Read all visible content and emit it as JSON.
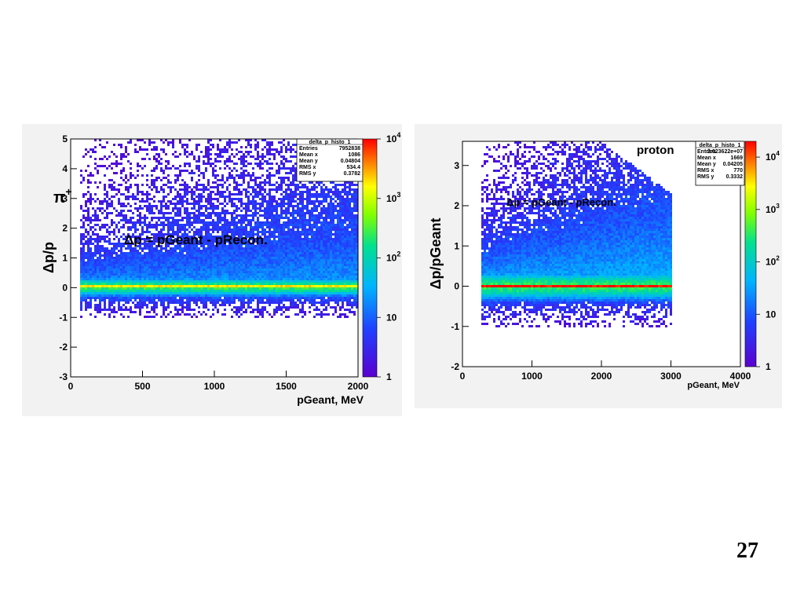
{
  "slide_number": "27",
  "chart_data": [
    {
      "type": "heatmap",
      "particle_label": "π",
      "particle_sup": "+",
      "annotation": "Δp = pGeant - pRecon.",
      "xlabel": "pGeant,  MeV",
      "ylabel": "Δp/p",
      "xlim": [
        0,
        2000
      ],
      "ylim": [
        -3,
        5
      ],
      "xticks": [
        "0",
        "500",
        "1000",
        "1500",
        "2000"
      ],
      "yticks": [
        "-3",
        "-2",
        "-1",
        "0",
        "1",
        "2",
        "3",
        "4",
        "5"
      ],
      "colorbar_scale": "log",
      "colorbar_range": [
        1,
        10000
      ],
      "colorbar_labels": [
        {
          "value": 1,
          "base": "1",
          "exp": ""
        },
        {
          "value": 10,
          "base": "10",
          "exp": ""
        },
        {
          "value": 100,
          "base": "10",
          "exp": "2"
        },
        {
          "value": 1000,
          "base": "10",
          "exp": "3"
        },
        {
          "value": 10000,
          "base": "10",
          "exp": "4"
        }
      ],
      "stats_box": {
        "title": "delta_p_histo_1",
        "rows": [
          {
            "label": "Entries",
            "value": "7952838"
          },
          {
            "label": "Mean x",
            "value": "1086"
          },
          {
            "label": "Mean y",
            "value": "0.04804"
          },
          {
            "label": "RMS x",
            "value": "534.4"
          },
          {
            "label": "RMS y",
            "value": "0.3782"
          }
        ]
      },
      "grid": false
    },
    {
      "type": "heatmap",
      "particle_label": "proton",
      "annotation": "Δp = pGeant - pRecon.",
      "xlabel": "pGeant,  MeV",
      "ylabel": "Δp/pGeant",
      "xlim": [
        0,
        4000
      ],
      "ylim": [
        -2,
        3.6
      ],
      "xticks": [
        "0",
        "1000",
        "2000",
        "3000",
        "4000"
      ],
      "yticks": [
        "-2",
        "-1",
        "0",
        "1",
        "2",
        "3"
      ],
      "colorbar_scale": "log",
      "colorbar_range": [
        1,
        20000
      ],
      "colorbar_labels": [
        {
          "value": 1,
          "base": "1",
          "exp": ""
        },
        {
          "value": 10,
          "base": "10",
          "exp": ""
        },
        {
          "value": 100,
          "base": "10",
          "exp": "2"
        },
        {
          "value": 1000,
          "base": "10",
          "exp": "3"
        },
        {
          "value": 10000,
          "base": "10",
          "exp": "4"
        }
      ],
      "stats_box": {
        "title": "delta_p_histo_1",
        "rows": [
          {
            "label": "Entries",
            "value": "2.023622e+07"
          },
          {
            "label": "Mean x",
            "value": "1669"
          },
          {
            "label": "Mean y",
            "value": "0.04205"
          },
          {
            "label": "RMS x",
            "value": "770"
          },
          {
            "label": "RMS y",
            "value": "0.3332"
          }
        ]
      },
      "grid": false
    }
  ]
}
